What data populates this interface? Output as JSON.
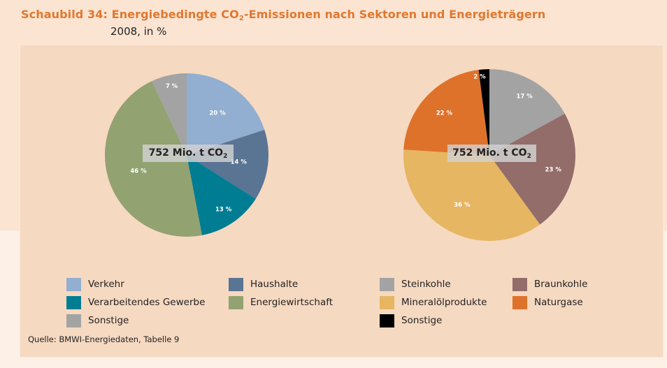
{
  "title": {
    "prefix": "Schaubild 34: Energiebedingte CO",
    "sub": "2",
    "suffix": "-Emissionen nach Sektoren und Energieträgern"
  },
  "subtitle": "2008, in %",
  "source": "Quelle: BMWI-Energiedaten, Tabelle 9",
  "chart_data": [
    {
      "type": "pie",
      "center_label": {
        "main": "752 Mio. t CO",
        "sub": "2"
      },
      "slices": [
        {
          "label": "Verkehr",
          "value": 20,
          "value_label": "20 %",
          "color": "#92aed0"
        },
        {
          "label": "Haushalte",
          "value": 14,
          "value_label": "14 %",
          "color": "#5a7494"
        },
        {
          "label": "Verarbeitendes Gewerbe",
          "value": 13,
          "value_label": "13 %",
          "color": "#007d93"
        },
        {
          "label": "Energiewirtschaft",
          "value": 46,
          "value_label": "46 %",
          "color": "#93a271"
        },
        {
          "label": "Sonstige",
          "value": 7,
          "value_label": "7 %",
          "color": "#a3a3a3"
        }
      ]
    },
    {
      "type": "pie",
      "center_label": {
        "main": "752 Mio. t CO",
        "sub": "2"
      },
      "slices": [
        {
          "label": "Steinkohle",
          "value": 17,
          "value_label": "17 %",
          "color": "#a3a3a3"
        },
        {
          "label": "Braunkohle",
          "value": 23,
          "value_label": "23 %",
          "color": "#926d6a"
        },
        {
          "label": "Mineralölprodukte",
          "value": 36,
          "value_label": "36 %",
          "color": "#e7b662"
        },
        {
          "label": "Naturgase",
          "value": 22,
          "value_label": "22 %",
          "color": "#df722b"
        },
        {
          "label": "Sonstige",
          "value": 2,
          "value_label": "2 %",
          "color": "#000000"
        }
      ]
    }
  ],
  "legend": [
    {
      "label": "Verkehr",
      "color": "#92aed0"
    },
    {
      "label": "Haushalte",
      "color": "#5a7494"
    },
    {
      "label": "Steinkohle",
      "color": "#a3a3a3"
    },
    {
      "label": "Braunkohle",
      "color": "#926d6a"
    },
    {
      "label": "Verarbeitendes Gewerbe",
      "color": "#007d93"
    },
    {
      "label": "Energiewirtschaft",
      "color": "#93a271"
    },
    {
      "label": "Mineralölprodukte",
      "color": "#e7b662"
    },
    {
      "label": "Naturgase",
      "color": "#df722b"
    },
    {
      "label": "Sonstige",
      "color": "#a3a3a3"
    },
    {
      "label": "Sonstige",
      "color": "#000000"
    }
  ]
}
